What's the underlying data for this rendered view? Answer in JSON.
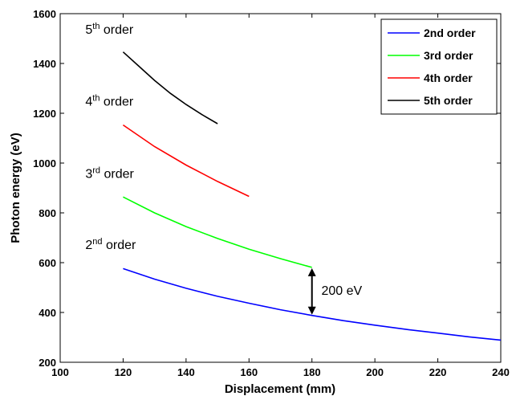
{
  "chart_data": {
    "type": "line",
    "xlabel": "Displacement (mm)",
    "ylabel": "Photon energy (eV)",
    "xlim": [
      100,
      240
    ],
    "ylim": [
      200,
      1600
    ],
    "xticks": [
      100,
      120,
      140,
      160,
      180,
      200,
      220,
      240
    ],
    "yticks": [
      200,
      400,
      600,
      800,
      1000,
      1200,
      1400,
      1600
    ],
    "grid": false,
    "legend_position": "top-right",
    "series": [
      {
        "name": "2nd order",
        "color": "#0000ff",
        "x": [
          120,
          130,
          140,
          150,
          160,
          170,
          180,
          190,
          200,
          210,
          220,
          230,
          240
        ],
        "y": [
          576,
          534,
          497,
          465,
          437,
          411,
          388,
          367,
          349,
          332,
          317,
          302,
          289
        ]
      },
      {
        "name": "3rd order",
        "color": "#00ff00",
        "x": [
          120,
          130,
          140,
          150,
          160,
          170,
          180
        ],
        "y": [
          864,
          800,
          745,
          697,
          654,
          616,
          581
        ]
      },
      {
        "name": "4th order",
        "color": "#ff0000",
        "x": [
          120,
          130,
          140,
          150,
          160
        ],
        "y": [
          1153,
          1066,
          992,
          926,
          866
        ]
      },
      {
        "name": "5th order",
        "color": "#000000",
        "x": [
          120,
          125,
          130,
          135,
          140,
          145,
          150
        ],
        "y": [
          1446,
          1389,
          1332,
          1280,
          1235,
          1195,
          1158
        ]
      }
    ],
    "annotations": [
      {
        "base": "5",
        "sup": "th",
        "rest": " order",
        "x": 108,
        "y": 1520
      },
      {
        "base": "4",
        "sup": "th",
        "rest": " order",
        "x": 108,
        "y": 1230
      },
      {
        "base": "3",
        "sup": "rd",
        "rest": " order",
        "x": 108,
        "y": 940
      },
      {
        "base": "2",
        "sup": "nd",
        "rest": " order",
        "x": 108,
        "y": 655
      }
    ],
    "arrow": {
      "x": 180,
      "y_from": 388,
      "y_to": 581,
      "label": "200 eV",
      "label_x": 183,
      "label_y": 490
    }
  }
}
